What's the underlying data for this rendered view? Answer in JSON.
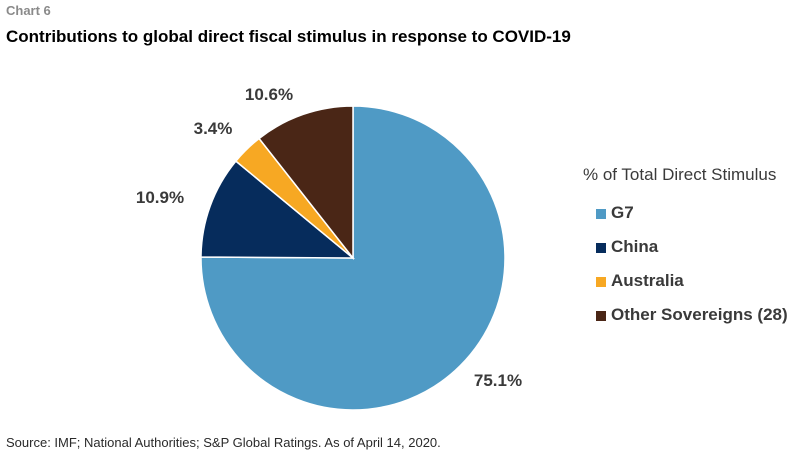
{
  "header": {
    "chart_number": "Chart 6",
    "title": "Contributions to global direct fiscal stimulus in response to COVID-19"
  },
  "chart_data": {
    "type": "pie",
    "title": "Contributions to global direct fiscal stimulus in response to COVID-19",
    "legend_title": "% of Total Direct Stimulus",
    "legend_position": "right",
    "slices": [
      {
        "name": "G7",
        "value": 75.1,
        "label": "75.1%",
        "color": "#4f9ac5"
      },
      {
        "name": "China",
        "value": 10.9,
        "label": "10.9%",
        "color": "#062c5c"
      },
      {
        "name": "Australia",
        "value": 3.4,
        "label": "3.4%",
        "color": "#f7a823"
      },
      {
        "name": "Other Sovereigns (28)",
        "value": 10.6,
        "label": "10.6%",
        "color": "#4a2616"
      }
    ]
  },
  "footer": {
    "source": "Source: IMF; National Authorities; S&P Global Ratings. As of April 14, 2020."
  }
}
